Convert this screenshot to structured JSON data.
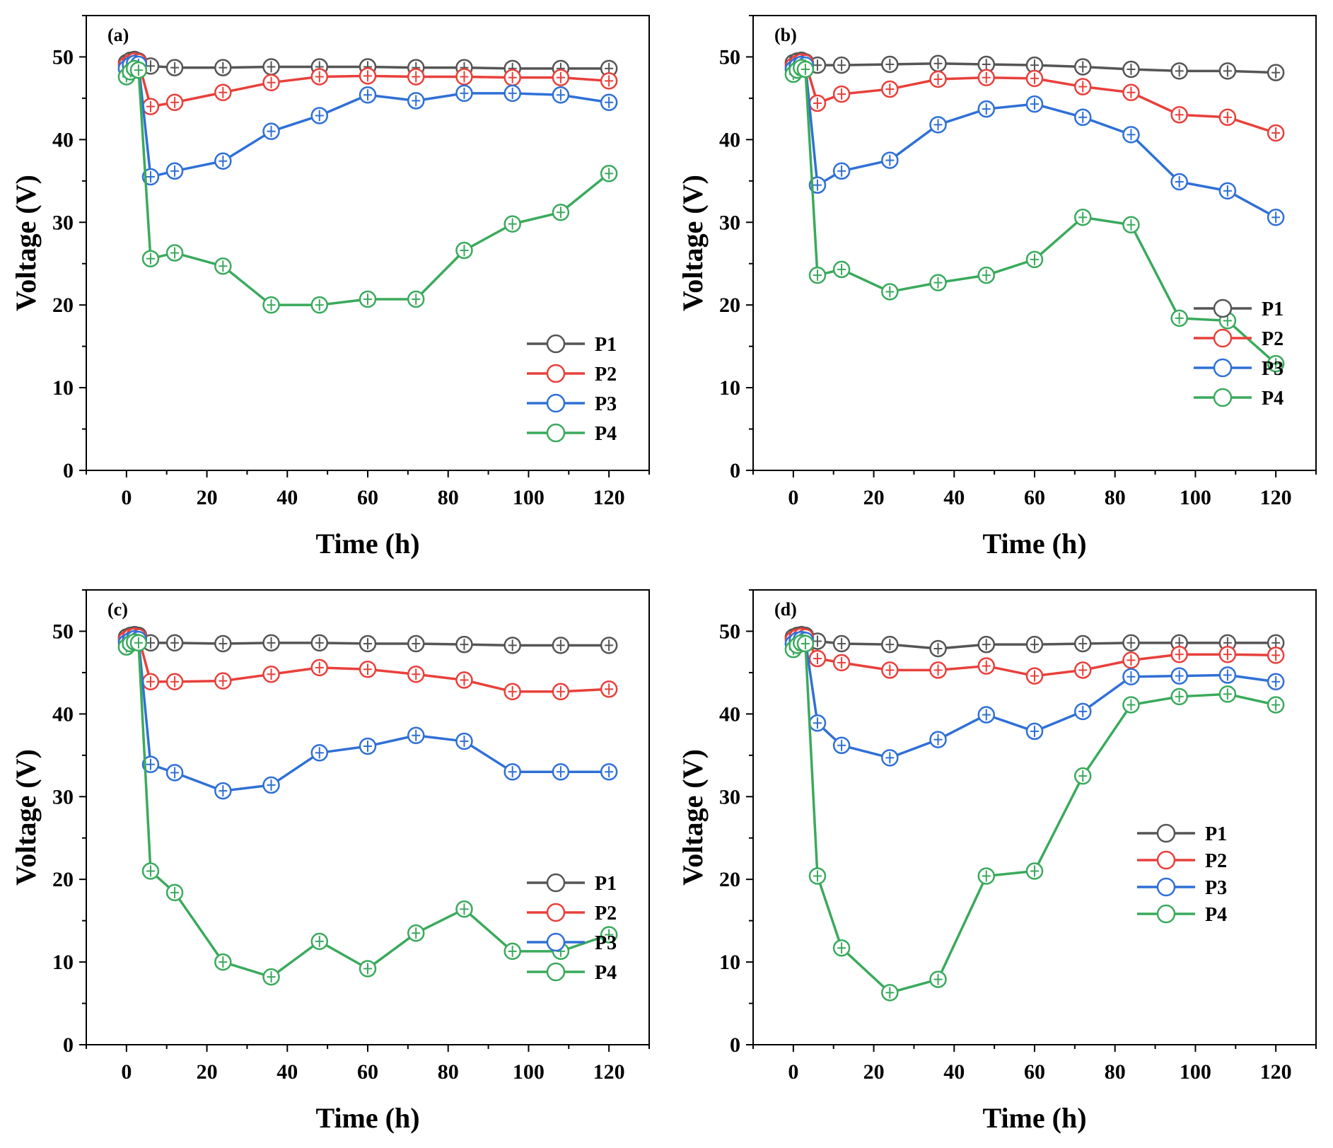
{
  "chart_data": [
    {
      "type": "line",
      "label": "(a)",
      "xlabel": "Time (h)",
      "ylabel": "Voltage (V)",
      "xlim": [
        -10,
        130
      ],
      "ylim": [
        0,
        55
      ],
      "xticks": [
        0,
        20,
        40,
        60,
        80,
        100,
        120
      ],
      "yticks": [
        0,
        10,
        20,
        30,
        40,
        50
      ],
      "x": [
        0,
        1,
        2,
        3,
        6,
        12,
        24,
        36,
        48,
        60,
        72,
        84,
        96,
        108,
        120
      ],
      "legend_position": "lower-right",
      "series": [
        {
          "name": "P1",
          "color": "#555555",
          "values": [
            49.3,
            49.6,
            49.7,
            49.5,
            48.9,
            48.7,
            48.7,
            48.8,
            48.8,
            48.8,
            48.7,
            48.7,
            48.6,
            48.6,
            48.6
          ]
        },
        {
          "name": "P2",
          "color": "#e8403b",
          "values": [
            49.0,
            49.3,
            49.5,
            49.4,
            44.0,
            44.5,
            45.7,
            46.9,
            47.6,
            47.7,
            47.6,
            47.6,
            47.5,
            47.5,
            47.1
          ]
        },
        {
          "name": "P3",
          "color": "#2f70d6",
          "values": [
            48.6,
            49.0,
            49.2,
            49.1,
            35.5,
            36.2,
            37.4,
            41.0,
            42.9,
            45.4,
            44.7,
            45.6,
            45.6,
            45.4,
            44.5
          ]
        },
        {
          "name": "P4",
          "color": "#3aaa5c",
          "values": [
            47.6,
            48.2,
            48.6,
            48.4,
            25.6,
            26.3,
            24.7,
            20.0,
            20.0,
            20.7,
            20.7,
            26.6,
            29.8,
            31.2,
            35.9
          ]
        }
      ]
    },
    {
      "type": "line",
      "label": "(b)",
      "xlabel": "Time (h)",
      "ylabel": "Voltage (V)",
      "xlim": [
        -10,
        130
      ],
      "ylim": [
        0,
        55
      ],
      "xticks": [
        0,
        20,
        40,
        60,
        80,
        100,
        120
      ],
      "yticks": [
        0,
        10,
        20,
        30,
        40,
        50
      ],
      "x": [
        0,
        1,
        2,
        3,
        6,
        12,
        24,
        36,
        48,
        60,
        72,
        84,
        96,
        108,
        120
      ],
      "legend_position": "middle-right",
      "series": [
        {
          "name": "P1",
          "color": "#555555",
          "values": [
            49.3,
            49.5,
            49.6,
            49.4,
            49.0,
            49.0,
            49.1,
            49.2,
            49.1,
            49.0,
            48.8,
            48.5,
            48.3,
            48.3,
            48.1
          ]
        },
        {
          "name": "P2",
          "color": "#e8403b",
          "values": [
            48.9,
            49.2,
            49.4,
            49.3,
            44.4,
            45.5,
            46.1,
            47.3,
            47.5,
            47.4,
            46.4,
            45.7,
            43.0,
            42.7,
            40.8
          ]
        },
        {
          "name": "P3",
          "color": "#2f70d6",
          "values": [
            48.5,
            48.9,
            49.1,
            49.0,
            34.5,
            36.2,
            37.5,
            41.8,
            43.7,
            44.3,
            42.7,
            40.6,
            34.9,
            33.8,
            30.6
          ]
        },
        {
          "name": "P4",
          "color": "#3aaa5c",
          "values": [
            47.9,
            48.4,
            48.7,
            48.5,
            23.6,
            24.3,
            21.6,
            22.7,
            23.6,
            25.5,
            30.6,
            29.7,
            18.4,
            18.1,
            12.9
          ]
        }
      ]
    },
    {
      "type": "line",
      "label": "(c)",
      "xlabel": "Time (h)",
      "ylabel": "Voltage (V)",
      "xlim": [
        -10,
        130
      ],
      "ylim": [
        0,
        55
      ],
      "xticks": [
        0,
        20,
        40,
        60,
        80,
        100,
        120
      ],
      "yticks": [
        0,
        10,
        20,
        30,
        40,
        50
      ],
      "x": [
        0,
        1,
        2,
        3,
        6,
        12,
        24,
        36,
        48,
        60,
        72,
        84,
        96,
        108,
        120
      ],
      "legend_position": "middle-right",
      "series": [
        {
          "name": "P1",
          "color": "#555555",
          "values": [
            49.3,
            49.5,
            49.6,
            49.5,
            48.6,
            48.6,
            48.5,
            48.6,
            48.6,
            48.5,
            48.5,
            48.4,
            48.3,
            48.3,
            48.3
          ]
        },
        {
          "name": "P2",
          "color": "#e8403b",
          "values": [
            49.0,
            49.3,
            49.4,
            49.3,
            43.9,
            43.9,
            44.0,
            44.8,
            45.6,
            45.4,
            44.8,
            44.1,
            42.7,
            42.7,
            43.0
          ]
        },
        {
          "name": "P3",
          "color": "#2f70d6",
          "values": [
            48.6,
            48.9,
            49.1,
            49.0,
            33.9,
            32.9,
            30.7,
            31.4,
            35.3,
            36.1,
            37.4,
            36.7,
            33.0,
            33.0,
            33.0
          ]
        },
        {
          "name": "P4",
          "color": "#3aaa5c",
          "values": [
            48.1,
            48.5,
            48.7,
            48.6,
            21.0,
            18.4,
            10.0,
            8.2,
            12.5,
            9.2,
            13.5,
            16.4,
            11.3,
            11.3,
            13.3
          ]
        }
      ]
    },
    {
      "type": "line",
      "label": "(d)",
      "xlabel": "Time (h)",
      "ylabel": "Voltage (V)",
      "xlim": [
        -10,
        130
      ],
      "ylim": [
        0,
        55
      ],
      "xticks": [
        0,
        20,
        40,
        60,
        80,
        100,
        120
      ],
      "yticks": [
        0,
        10,
        20,
        30,
        40,
        50
      ],
      "x": [
        0,
        1,
        2,
        3,
        6,
        12,
        24,
        36,
        48,
        60,
        72,
        84,
        96,
        108,
        120
      ],
      "legend_position": "middle-right",
      "series": [
        {
          "name": "P1",
          "color": "#555555",
          "values": [
            49.3,
            49.5,
            49.6,
            49.5,
            48.8,
            48.5,
            48.4,
            47.9,
            48.4,
            48.4,
            48.5,
            48.6,
            48.6,
            48.6,
            48.6
          ]
        },
        {
          "name": "P2",
          "color": "#e8403b",
          "values": [
            49.0,
            49.3,
            49.4,
            49.3,
            46.7,
            46.2,
            45.3,
            45.3,
            45.8,
            44.6,
            45.3,
            46.5,
            47.2,
            47.2,
            47.1
          ]
        },
        {
          "name": "P3",
          "color": "#2f70d6",
          "values": [
            48.5,
            48.9,
            49.0,
            48.9,
            38.9,
            36.2,
            34.7,
            36.9,
            39.9,
            37.9,
            40.3,
            44.5,
            44.6,
            44.7,
            43.9
          ]
        },
        {
          "name": "P4",
          "color": "#3aaa5c",
          "values": [
            47.8,
            48.3,
            48.6,
            48.5,
            20.4,
            11.7,
            6.3,
            7.9,
            20.4,
            21.0,
            32.5,
            41.1,
            42.1,
            42.4,
            41.1
          ]
        }
      ]
    }
  ]
}
